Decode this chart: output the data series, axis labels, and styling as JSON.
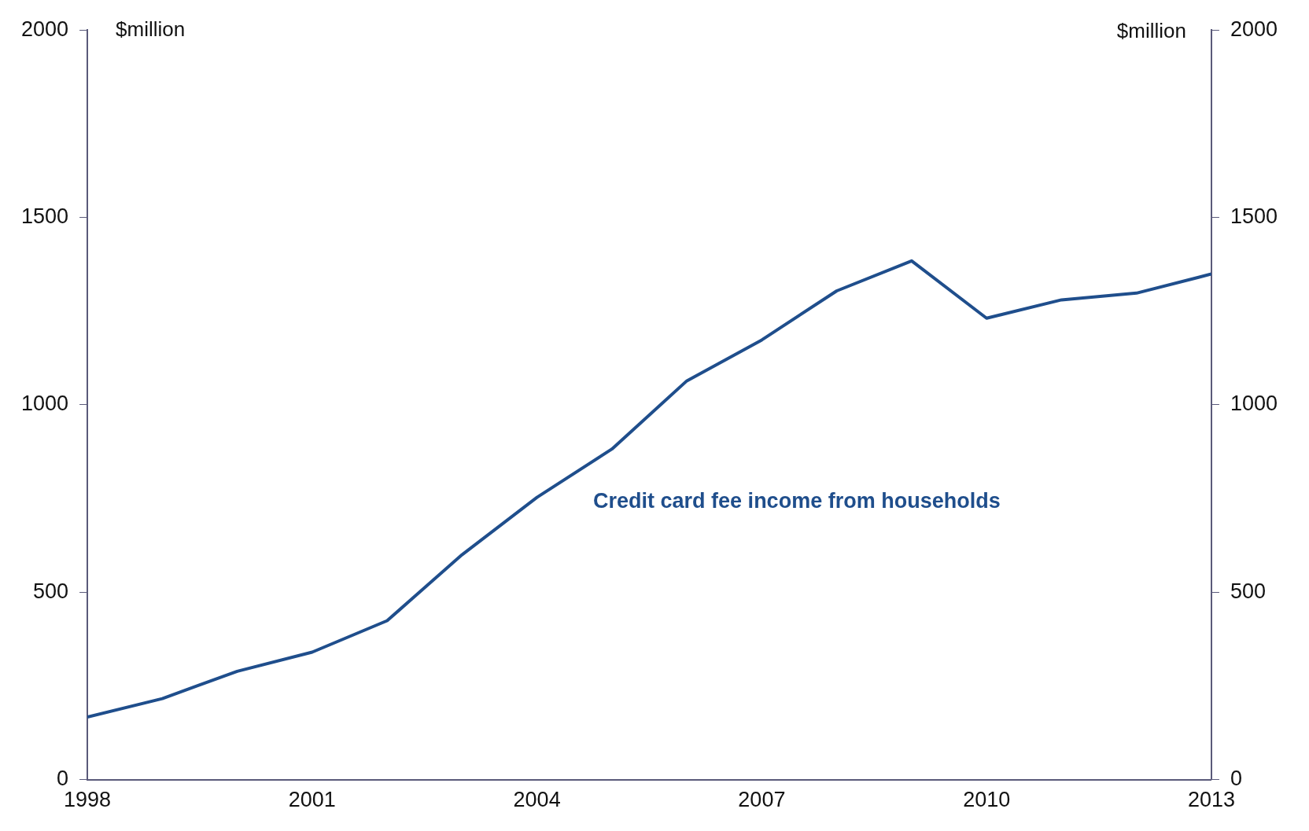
{
  "chart_data": {
    "type": "line",
    "ylabel": "$million",
    "y2label": "$million",
    "x": [
      1998,
      1999,
      2000,
      2001,
      2002,
      2003,
      2004,
      2005,
      2006,
      2007,
      2008,
      2009,
      2010,
      2011,
      2012,
      2013
    ],
    "series": [
      {
        "color": "#1f4e8c",
        "values": [
          167,
          216,
          289,
          340,
          424,
          600,
          753,
          882,
          1064,
          1173,
          1304,
          1384,
          1231,
          1280,
          1298,
          1349
        ]
      }
    ],
    "xlim": [
      1998,
      2013
    ],
    "xticks": [
      1998,
      2001,
      2004,
      2007,
      2010,
      2013
    ],
    "ylim": [
      0,
      2000
    ],
    "yticks": [
      0,
      500,
      1000,
      1500,
      2000
    ],
    "y2lim": [
      0,
      2000
    ],
    "y2ticks": [
      0,
      500,
      1000,
      1500,
      2000
    ],
    "annotations": [
      "Credit card fee income from households"
    ],
    "grid": false,
    "legend": false,
    "marker": "none",
    "line_style": "solid"
  }
}
